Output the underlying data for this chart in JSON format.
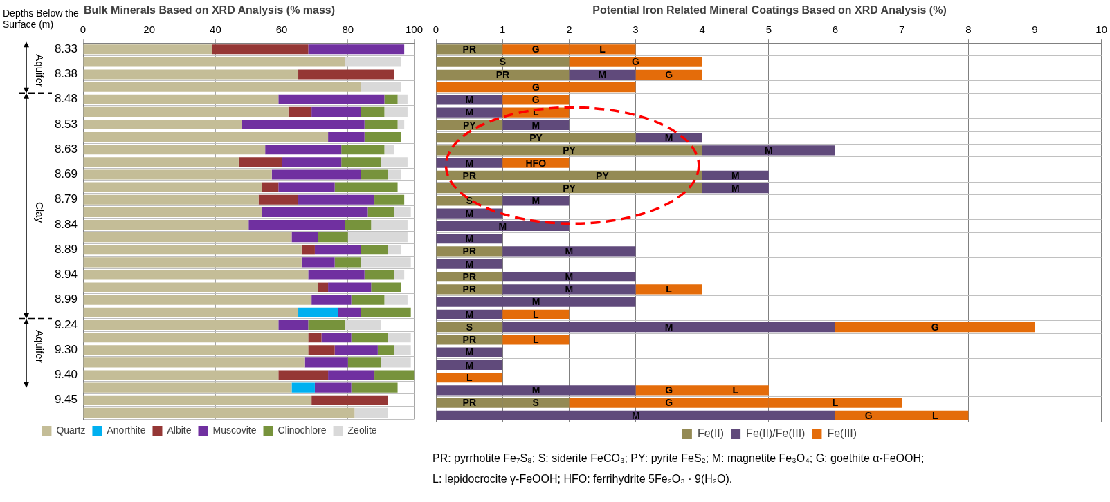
{
  "chart_data": [
    {
      "type": "bar",
      "title": "Bulk Minerals Based on XRD Analysis (% mass)",
      "ylabel": "Depths Below the Surface (m)",
      "orientation": "horizontal",
      "stacked": true,
      "categories": [
        "8.33",
        null,
        "8.38",
        null,
        "8.48",
        null,
        "8.53",
        null,
        "8.63",
        null,
        "8.69",
        null,
        "8.79",
        null,
        "8.84",
        null,
        "8.89",
        null,
        "8.94",
        null,
        "8.99",
        null,
        "9.24",
        null,
        "9.30",
        null,
        "9.40",
        null,
        "9.45",
        null
      ],
      "series": [
        {
          "name": "Quartz",
          "color": "#c4bd97",
          "values": [
            39,
            79,
            65,
            84,
            59,
            62,
            48,
            74,
            55,
            47,
            57,
            54,
            53,
            54,
            50,
            63,
            66,
            66,
            68,
            71,
            69,
            65,
            59,
            68,
            68,
            67,
            59,
            63,
            69,
            82
          ]
        },
        {
          "name": "Anorthite",
          "color": "#00b0f0",
          "values": [
            null,
            null,
            null,
            null,
            null,
            null,
            null,
            null,
            null,
            null,
            null,
            null,
            null,
            null,
            null,
            null,
            null,
            null,
            null,
            null,
            null,
            12,
            null,
            null,
            null,
            null,
            null,
            7,
            null,
            null
          ]
        },
        {
          "name": "Albite",
          "color": "#953735",
          "values": [
            29,
            null,
            29,
            null,
            null,
            7,
            null,
            null,
            null,
            13,
            null,
            5,
            12,
            null,
            null,
            null,
            4,
            null,
            null,
            3,
            null,
            null,
            null,
            4,
            8,
            null,
            15,
            null,
            23,
            null
          ]
        },
        {
          "name": "Muscovite",
          "color": "#7030a0",
          "values": [
            29,
            null,
            null,
            null,
            32,
            15,
            37,
            11,
            23,
            18,
            27,
            17,
            23,
            32,
            29,
            8,
            14,
            10,
            17,
            13,
            12,
            7,
            9,
            9,
            13,
            13,
            14,
            11,
            null,
            null
          ]
        },
        {
          "name": "Clinochlore",
          "color": "#77933c",
          "values": [
            null,
            null,
            null,
            null,
            4,
            7,
            10,
            11,
            13,
            12,
            8,
            19,
            9,
            8,
            8,
            9,
            8,
            8,
            9,
            9,
            10,
            15,
            11,
            11,
            5,
            10,
            12,
            14,
            null,
            null
          ]
        },
        {
          "name": "Zeolite",
          "color": "#d9d9d9",
          "values": [
            null,
            17,
            null,
            12,
            3,
            7,
            2,
            null,
            3,
            8,
            4,
            null,
            null,
            5,
            11,
            18,
            4,
            15,
            3,
            null,
            7,
            null,
            11,
            7,
            5,
            9,
            null,
            null,
            null,
            10
          ]
        }
      ],
      "xlim": [
        0,
        100
      ],
      "xticks": [
        0,
        20,
        40,
        60,
        80,
        100
      ],
      "grid": true,
      "legend": "bottom",
      "annotations": [
        "Aquifer",
        "Clay",
        "Aquifer"
      ]
    },
    {
      "type": "bar",
      "title": "Potential Iron Related Mineral Coatings Based on XRD Analysis (%)",
      "orientation": "horizontal",
      "stacked": true,
      "categories": [
        "8.33",
        null,
        "8.38",
        null,
        "8.48",
        null,
        "8.53",
        null,
        "8.63",
        null,
        "8.69",
        null,
        "8.79",
        null,
        "8.84",
        null,
        "8.89",
        null,
        "8.94",
        null,
        "8.99",
        null,
        "9.24",
        null,
        "9.30",
        null,
        "9.40",
        null,
        "9.45",
        null
      ],
      "series": [
        {
          "name": "Fe(II)",
          "color": "#948a54",
          "values": [
            1,
            2,
            2,
            null,
            null,
            null,
            1,
            3,
            4,
            null,
            1,
            4,
            1,
            null,
            null,
            null,
            1,
            null,
            1,
            1,
            null,
            null,
            1,
            1,
            null,
            null,
            null,
            null,
            1,
            null
          ],
          "value_labels": [
            "PR",
            "S",
            "PR",
            null,
            null,
            null,
            "PY",
            "PY",
            "PY",
            null,
            "PR",
            "PY",
            "S",
            null,
            null,
            null,
            "PR",
            null,
            "PR",
            "PR",
            null,
            null,
            "S",
            "PR",
            null,
            null,
            null,
            null,
            "PR",
            null
          ]
        },
        {
          "color": "#948a54",
          "values": [
            null,
            null,
            null,
            null,
            null,
            null,
            null,
            null,
            null,
            null,
            3,
            null,
            null,
            null,
            null,
            null,
            null,
            null,
            null,
            null,
            null,
            null,
            null,
            null,
            null,
            null,
            null,
            null,
            1,
            null
          ],
          "value_labels": [
            null,
            null,
            null,
            null,
            null,
            null,
            null,
            null,
            null,
            null,
            "PY",
            null,
            null,
            null,
            null,
            null,
            null,
            null,
            null,
            null,
            null,
            null,
            null,
            null,
            null,
            null,
            null,
            null,
            "S",
            null
          ]
        },
        {
          "name": "Fe(II)/Fe(III)",
          "color": "#604a7b",
          "values": [
            null,
            null,
            1,
            null,
            1,
            1,
            1,
            1,
            2,
            1,
            1,
            1,
            1,
            1,
            2,
            1,
            2,
            1,
            2,
            2,
            3,
            1,
            5,
            null,
            1,
            1,
            null,
            3,
            null,
            6
          ],
          "value_labels": [
            null,
            null,
            "M",
            null,
            "M",
            "M",
            "M",
            "M",
            "M",
            "M",
            "M",
            "M",
            "M",
            "M",
            "M",
            "M",
            "M",
            "M",
            "M",
            "M",
            "M",
            "M",
            "M",
            null,
            "M",
            "M",
            null,
            "M",
            null,
            "M"
          ]
        },
        {
          "name": "Fe(III)",
          "color": "#e46c0a",
          "values": [
            1,
            2,
            1,
            3,
            1,
            1,
            null,
            null,
            null,
            1,
            null,
            null,
            null,
            null,
            null,
            null,
            null,
            null,
            null,
            1,
            null,
            1,
            3,
            1,
            null,
            null,
            1,
            1,
            3,
            1
          ],
          "value_labels": [
            "G",
            "G",
            "G",
            "G",
            "G",
            "L",
            null,
            null,
            null,
            "HFO",
            null,
            null,
            null,
            null,
            null,
            null,
            null,
            null,
            null,
            "L",
            null,
            "L",
            "G",
            "L",
            null,
            null,
            "L",
            "G",
            "G",
            "G"
          ]
        },
        {
          "color": "#e46c0a",
          "values": [
            1,
            null,
            null,
            null,
            null,
            null,
            null,
            null,
            null,
            null,
            null,
            null,
            null,
            null,
            null,
            null,
            null,
            null,
            null,
            null,
            null,
            null,
            null,
            null,
            null,
            null,
            null,
            1,
            2,
            1
          ],
          "value_labels": [
            "L",
            null,
            null,
            null,
            null,
            null,
            null,
            null,
            null,
            null,
            null,
            null,
            null,
            null,
            null,
            null,
            null,
            null,
            null,
            null,
            null,
            null,
            null,
            null,
            null,
            null,
            null,
            "L",
            "L",
            "L"
          ]
        }
      ],
      "xlim": [
        0,
        10
      ],
      "xticks": [
        0,
        1,
        2,
        3,
        4,
        5,
        6,
        7,
        8,
        9,
        10
      ],
      "grid": true,
      "legend": "bottom",
      "tick_labels": "x",
      "annotations": [
        "PR: pyrrhotite Fe₇S₈; S: siderite FeCO₃; PY: pyrite FeS₂; M: magnetite Fe₃O₄; G: goethite α-FeOOH;",
        "L: lepidocrocite γ-FeOOH; HFO: ferrihydrite 5Fe₂O₃ · 9(H₂O)."
      ]
    }
  ]
}
